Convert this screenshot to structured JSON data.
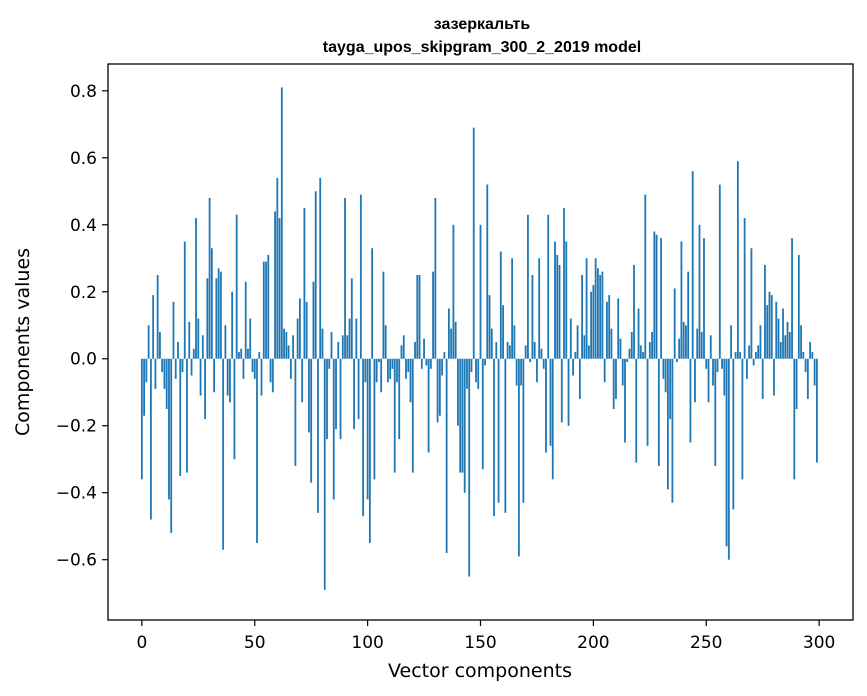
{
  "chart_data": {
    "type": "bar",
    "title_line1": "зазеркальть",
    "title_line2": "tayga_upos_skipgram_300_2_2019 model",
    "xlabel": "Vector components",
    "ylabel": "Components values",
    "xlim": [
      -15,
      315
    ],
    "ylim": [
      -0.78,
      0.88
    ],
    "xticks": [
      0,
      50,
      100,
      150,
      200,
      250,
      300
    ],
    "xtick_labels": [
      "0",
      "50",
      "100",
      "150",
      "200",
      "250",
      "300"
    ],
    "yticks": [
      -0.6,
      -0.4,
      -0.2,
      0.0,
      0.2,
      0.4,
      0.6,
      0.8
    ],
    "ytick_labels": [
      "−0.6",
      "−0.4",
      "−0.2",
      "0.0",
      "0.2",
      "0.4",
      "0.6",
      "0.8"
    ],
    "color": "#1f77b4",
    "values": [
      -0.36,
      -0.17,
      -0.07,
      0.1,
      -0.48,
      0.19,
      -0.09,
      0.25,
      0.08,
      -0.04,
      -0.09,
      -0.15,
      -0.42,
      -0.52,
      0.17,
      -0.06,
      0.05,
      -0.35,
      -0.04,
      0.35,
      -0.34,
      0.11,
      -0.05,
      0.03,
      0.42,
      0.12,
      -0.11,
      0.07,
      -0.18,
      0.24,
      0.48,
      0.33,
      -0.1,
      0.24,
      0.27,
      0.26,
      -0.57,
      0.1,
      -0.11,
      -0.13,
      0.2,
      -0.3,
      0.43,
      0.02,
      0.03,
      -0.06,
      0.23,
      0.03,
      0.12,
      -0.04,
      -0.06,
      -0.55,
      0.02,
      -0.11,
      0.29,
      0.29,
      0.31,
      -0.07,
      -0.1,
      0.44,
      0.54,
      0.42,
      0.81,
      0.09,
      0.08,
      0.04,
      -0.06,
      0.07,
      -0.32,
      0.12,
      0.18,
      -0.13,
      0.45,
      0.17,
      -0.22,
      -0.37,
      0.23,
      0.5,
      -0.46,
      0.54,
      0.09,
      -0.69,
      -0.24,
      -0.03,
      0.08,
      -0.42,
      -0.21,
      0.05,
      -0.24,
      0.07,
      0.48,
      0.07,
      0.12,
      0.24,
      -0.21,
      0.12,
      -0.18,
      0.49,
      -0.47,
      -0.07,
      -0.42,
      -0.55,
      0.33,
      -0.36,
      -0.07,
      -0.01,
      -0.1,
      0.26,
      0.1,
      -0.07,
      -0.06,
      -0.03,
      -0.34,
      -0.07,
      -0.24,
      0.04,
      0.07,
      -0.06,
      -0.04,
      -0.13,
      -0.34,
      0.05,
      0.25,
      0.25,
      -0.03,
      0.06,
      -0.02,
      -0.28,
      -0.03,
      0.26,
      0.48,
      -0.19,
      -0.17,
      -0.05,
      0.02,
      -0.58,
      0.15,
      0.09,
      0.4,
      0.11,
      -0.2,
      -0.34,
      -0.34,
      -0.4,
      -0.09,
      -0.65,
      -0.04,
      0.69,
      -0.07,
      -0.09,
      0.4,
      -0.33,
      -0.02,
      0.52,
      0.19,
      0.09,
      -0.47,
      0.05,
      -0.43,
      0.32,
      0.16,
      -0.46,
      0.05,
      0.04,
      0.3,
      0.1,
      -0.08,
      -0.59,
      -0.08,
      -0.43,
      0.04,
      0.43,
      -0.01,
      0.25,
      0.05,
      -0.07,
      0.3,
      0.03,
      -0.03,
      -0.28,
      0.43,
      -0.26,
      -0.36,
      0.35,
      0.31,
      0.28,
      -0.19,
      0.45,
      0.35,
      -0.2,
      0.12,
      -0.05,
      0.02,
      0.1,
      -0.12,
      0.25,
      0.07,
      0.3,
      0.04,
      0.2,
      0.22,
      0.3,
      0.27,
      0.25,
      0.26,
      -0.07,
      0.17,
      0.19,
      0.09,
      -0.15,
      -0.12,
      0.18,
      0.06,
      -0.08,
      -0.25,
      -0.01,
      0.03,
      0.08,
      0.28,
      -0.31,
      0.15,
      0.04,
      0.02,
      0.49,
      -0.26,
      0.05,
      0.08,
      0.38,
      0.37,
      -0.32,
      0.36,
      -0.06,
      -0.1,
      -0.39,
      -0.18,
      -0.43,
      0.21,
      -0.01,
      0.06,
      0.35,
      0.11,
      0.1,
      0.26,
      -0.25,
      0.56,
      -0.13,
      0.09,
      0.4,
      0.08,
      0.36,
      -0.03,
      -0.13,
      0.07,
      -0.08,
      -0.32,
      -0.04,
      0.52,
      -0.03,
      -0.11,
      -0.56,
      -0.6,
      0.1,
      -0.45,
      0.02,
      0.59,
      0.02,
      -0.36,
      0.42,
      -0.06,
      0.04,
      0.33,
      -0.02,
      0.02,
      0.04,
      0.1,
      -0.12,
      0.28,
      0.16,
      0.2,
      0.19,
      -0.11,
      0.17,
      0.12,
      0.05,
      0.15,
      0.07,
      0.11,
      0.08,
      0.36,
      -0.36,
      -0.15,
      0.31,
      0.1,
      0.02,
      -0.04,
      -0.12,
      0.05,
      0.02,
      -0.08,
      -0.31
    ]
  }
}
